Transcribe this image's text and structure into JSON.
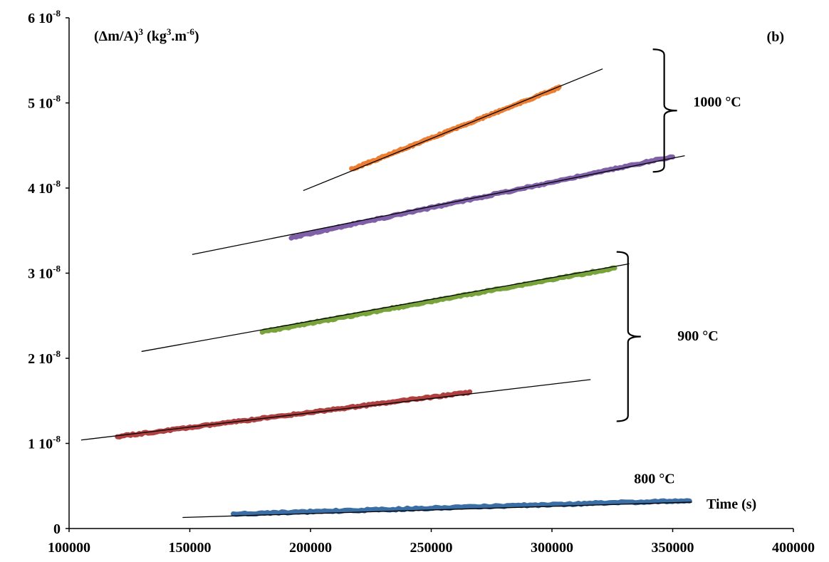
{
  "chart_data": {
    "type": "line",
    "title": "",
    "panel_label": "(b)",
    "ylabel": {
      "base": "(Δm/A)",
      "exp": "3",
      "unit_pre": " (kg",
      "unit_exp1": "3",
      "unit_mid": ".m",
      "unit_exp2": "-6",
      "unit_post": ")"
    },
    "xlabel": "Time (s)",
    "xlim": [
      100000,
      400000
    ],
    "ylim": [
      0,
      6e-08
    ],
    "grid": false,
    "x_ticks": [
      {
        "value": 100000,
        "label": "100000"
      },
      {
        "value": 150000,
        "label": "150000"
      },
      {
        "value": 200000,
        "label": "200000"
      },
      {
        "value": 250000,
        "label": "250000"
      },
      {
        "value": 300000,
        "label": "300000"
      },
      {
        "value": 350000,
        "label": "350000"
      },
      {
        "value": 400000,
        "label": "400000"
      }
    ],
    "y_ticks": [
      {
        "value": 0,
        "label": "0"
      },
      {
        "value": 1e-08,
        "label": "1 10",
        "exp": "-8"
      },
      {
        "value": 2e-08,
        "label": "2 10",
        "exp": "-8"
      },
      {
        "value": 3e-08,
        "label": "3 10",
        "exp": "-8"
      },
      {
        "value": 4e-08,
        "label": "4 10",
        "exp": "-8"
      },
      {
        "value": 5e-08,
        "label": "5 10",
        "exp": "-8"
      },
      {
        "value": 6e-08,
        "label": "6 10",
        "exp": "-8"
      }
    ],
    "series": [
      {
        "color": "#ed7d31",
        "x": [
          217000,
          303000
        ],
        "y": [
          4.22e-08,
          5.18e-08
        ]
      },
      {
        "color": "#7f5fa8",
        "x": [
          192000,
          350000
        ],
        "y": [
          3.42e-08,
          4.37e-08
        ]
      },
      {
        "color": "#77a33a",
        "x": [
          180000,
          326000
        ],
        "y": [
          2.31e-08,
          3.06e-08
        ]
      },
      {
        "color": "#b04040",
        "x": [
          120000,
          266000
        ],
        "y": [
          1.08e-08,
          1.6e-08
        ]
      },
      {
        "color": "#3a6ea5",
        "x": [
          168000,
          357000
        ],
        "y": [
          1.7e-09,
          3.3e-09
        ]
      }
    ],
    "fit_lines": [
      {
        "color": "#000000",
        "x": [
          197000,
          321000
        ],
        "y": [
          3.97e-08,
          5.4e-08
        ]
      },
      {
        "color": "#000000",
        "x": [
          151000,
          355000
        ],
        "y": [
          3.22e-08,
          4.38e-08
        ]
      },
      {
        "color": "#000000",
        "x": [
          130000,
          332000
        ],
        "y": [
          2.08e-08,
          3.11e-08
        ]
      },
      {
        "color": "#000000",
        "x": [
          105000,
          316000
        ],
        "y": [
          1.04e-08,
          1.75e-08
        ]
      },
      {
        "color": "#000000",
        "x": [
          147000,
          358000
        ],
        "y": [
          1.3e-09,
          3.1e-09
        ]
      }
    ],
    "annotations": [
      {
        "text": "1000 °C",
        "x": 358500,
        "y": 4.96e-08
      },
      {
        "text": "900 °C",
        "x": 352000,
        "y": 2.21e-08
      },
      {
        "text": "800 °C",
        "x": 334000,
        "y": 5.3e-09
      }
    ],
    "brackets": [
      {
        "x": 346500,
        "y_top": 5.63e-08,
        "y_bottom": 4.19e-08
      },
      {
        "x": 331500,
        "y_top": 3.25e-08,
        "y_bottom": 1.26e-08
      }
    ]
  }
}
